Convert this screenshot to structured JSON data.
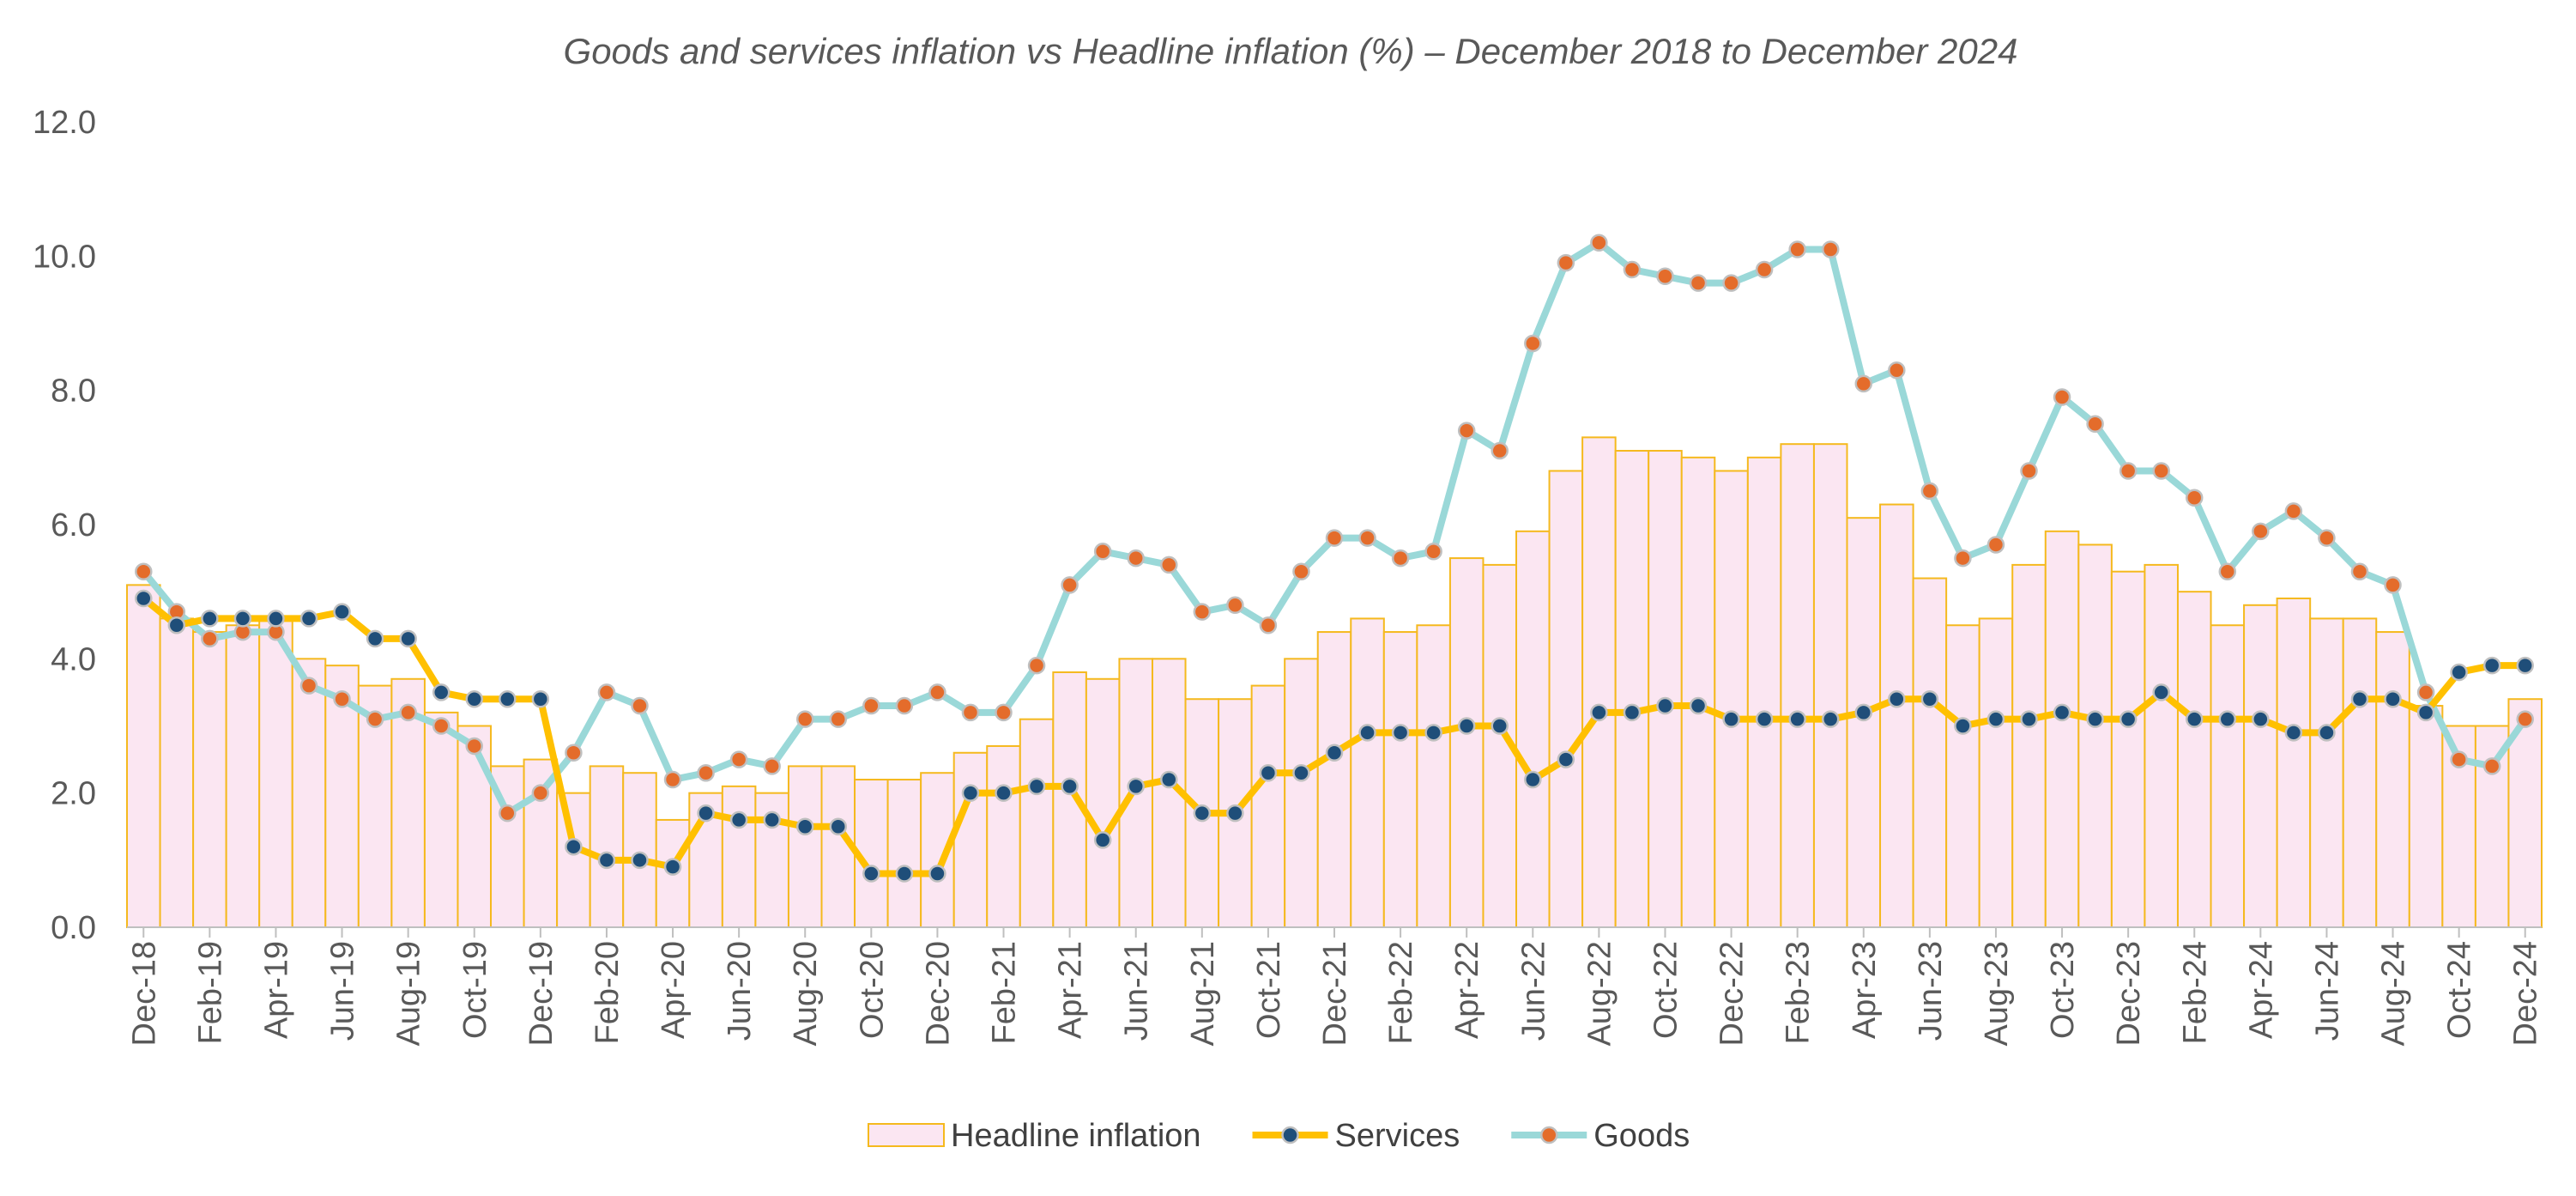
{
  "chart_data": {
    "type": "bar",
    "title": "Goods and services inflation vs Headline inflation (%) – December 2018 to December 2024",
    "xlabel": "",
    "ylabel": "",
    "ylim": [
      0,
      12
    ],
    "yticks": [
      "0.0",
      "2.0",
      "4.0",
      "6.0",
      "8.0",
      "10.0",
      "12.0"
    ],
    "grid": false,
    "legend_position": "bottom",
    "categories": [
      "Dec-18",
      "Jan-19",
      "Feb-19",
      "Mar-19",
      "Apr-19",
      "May-19",
      "Jun-19",
      "Jul-19",
      "Aug-19",
      "Sep-19",
      "Oct-19",
      "Nov-19",
      "Dec-19",
      "Jan-20",
      "Feb-20",
      "Mar-20",
      "Apr-20",
      "May-20",
      "Jun-20",
      "Jul-20",
      "Aug-20",
      "Sep-20",
      "Oct-20",
      "Nov-20",
      "Dec-20",
      "Jan-21",
      "Feb-21",
      "Mar-21",
      "Apr-21",
      "May-21",
      "Jun-21",
      "Jul-21",
      "Aug-21",
      "Sep-21",
      "Oct-21",
      "Nov-21",
      "Dec-21",
      "Jan-22",
      "Feb-22",
      "Mar-22",
      "Apr-22",
      "May-22",
      "Jun-22",
      "Jul-22",
      "Aug-22",
      "Sep-22",
      "Oct-22",
      "Nov-22",
      "Dec-22",
      "Jan-23",
      "Feb-23",
      "Mar-23",
      "Apr-23",
      "May-23",
      "Jun-23",
      "Jul-23",
      "Aug-23",
      "Sep-23",
      "Oct-23",
      "Nov-23",
      "Dec-23",
      "Jan-24",
      "Feb-24",
      "Mar-24",
      "Apr-24",
      "May-24",
      "Jun-24",
      "Jul-24",
      "Aug-24",
      "Sep-24",
      "Oct-24",
      "Nov-24",
      "Dec-24"
    ],
    "tick_labels": [
      "Dec-18",
      "Feb-19",
      "Apr-19",
      "Jun-19",
      "Aug-19",
      "Oct-19",
      "Dec-19",
      "Feb-20",
      "Apr-20",
      "Jun-20",
      "Aug-20",
      "Oct-20",
      "Dec-20",
      "Feb-21",
      "Apr-21",
      "Jun-21",
      "Aug-21",
      "Oct-21",
      "Dec-21",
      "Feb-22",
      "Apr-22",
      "Jun-22",
      "Aug-22",
      "Oct-22",
      "Dec-22",
      "Feb-23",
      "Apr-23",
      "Jun-23",
      "Aug-23",
      "Oct-23",
      "Dec-23",
      "Feb-24",
      "Apr-24",
      "Jun-24",
      "Aug-24",
      "Oct-24",
      "Dec-24"
    ],
    "series": [
      {
        "name": "Headline inflation",
        "type": "bar",
        "color": "#FBE6F2",
        "edge_color": "#F5B91E",
        "values": [
          5.1,
          4.6,
          4.4,
          4.5,
          4.6,
          4.0,
          3.9,
          3.6,
          3.7,
          3.2,
          3.0,
          2.4,
          2.5,
          2.0,
          2.4,
          2.3,
          1.6,
          2.0,
          2.1,
          2.0,
          2.4,
          2.4,
          2.2,
          2.2,
          2.3,
          2.6,
          2.7,
          3.1,
          3.8,
          3.7,
          4.0,
          4.0,
          3.4,
          3.4,
          3.6,
          4.0,
          4.4,
          4.6,
          4.4,
          4.5,
          5.5,
          5.4,
          5.9,
          6.8,
          7.3,
          7.1,
          7.1,
          7.0,
          6.8,
          7.0,
          7.2,
          7.2,
          6.1,
          6.3,
          5.2,
          4.5,
          4.6,
          5.4,
          5.9,
          5.7,
          5.3,
          5.4,
          5.0,
          4.5,
          4.8,
          4.9,
          4.6,
          4.6,
          4.4,
          3.3,
          3.0,
          3.0,
          3.4
        ]
      },
      {
        "name": "Services",
        "type": "line",
        "color": "#FFC000",
        "marker_color": "#1F4E79",
        "values": [
          4.9,
          4.5,
          4.6,
          4.6,
          4.6,
          4.6,
          4.7,
          4.3,
          4.3,
          3.5,
          3.4,
          3.4,
          3.4,
          1.2,
          1.0,
          1.0,
          0.9,
          1.7,
          1.6,
          1.6,
          1.5,
          1.5,
          0.8,
          0.8,
          0.8,
          2.0,
          2.0,
          2.1,
          2.1,
          1.3,
          2.1,
          2.2,
          1.7,
          1.7,
          2.3,
          2.3,
          2.6,
          2.9,
          2.9,
          2.9,
          3.0,
          3.0,
          2.2,
          2.5,
          3.2,
          3.2,
          3.3,
          3.3,
          3.1,
          3.1,
          3.1,
          3.1,
          3.2,
          3.4,
          3.4,
          3.0,
          3.1,
          3.1,
          3.2,
          3.1,
          3.1,
          3.5,
          3.1,
          3.1,
          3.1,
          2.9,
          2.9,
          3.4,
          3.4,
          3.2,
          3.8,
          3.9,
          3.9
        ]
      },
      {
        "name": "Goods",
        "type": "line",
        "color": "#9AD8D8",
        "marker_color": "#E46C2B",
        "values": [
          5.3,
          4.7,
          4.3,
          4.4,
          4.4,
          3.6,
          3.4,
          3.1,
          3.2,
          3.0,
          2.7,
          1.7,
          2.0,
          2.6,
          3.5,
          3.3,
          2.2,
          2.3,
          2.5,
          2.4,
          3.1,
          3.1,
          3.3,
          3.3,
          3.5,
          3.2,
          3.2,
          3.9,
          5.1,
          5.6,
          5.5,
          5.4,
          4.7,
          4.8,
          4.5,
          5.3,
          5.8,
          5.8,
          5.5,
          5.6,
          7.4,
          7.1,
          8.7,
          9.9,
          10.2,
          9.8,
          9.7,
          9.6,
          9.6,
          9.8,
          10.1,
          10.1,
          8.1,
          8.3,
          6.5,
          5.5,
          5.7,
          6.8,
          7.9,
          7.5,
          6.8,
          6.8,
          6.4,
          5.3,
          5.9,
          6.2,
          5.8,
          5.3,
          5.1,
          3.5,
          2.5,
          2.4,
          3.1
        ]
      }
    ]
  }
}
